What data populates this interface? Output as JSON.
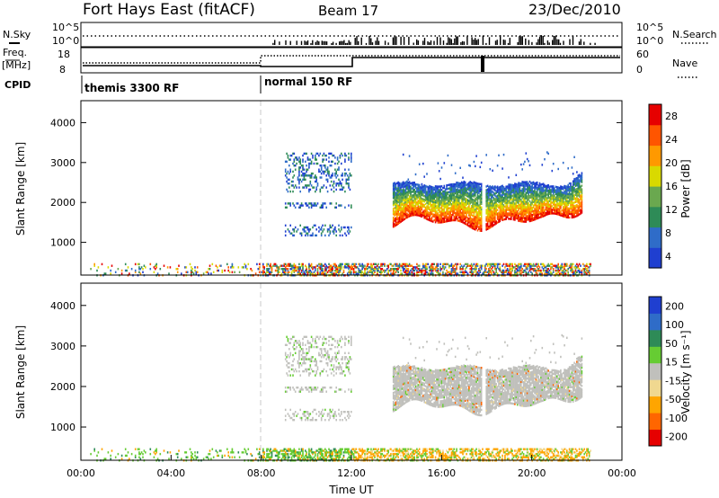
{
  "header": {
    "station": "Fort Hays East (fitACF)",
    "beam": "Beam 17",
    "date": "23/Dec/2010"
  },
  "summary": {
    "nsky_label": "N.Sky",
    "nsky_ticks": [
      "10^5",
      "10^0"
    ],
    "nsearch_label": "N.Search",
    "nsearch_ticks": [
      "10^5",
      "10^0"
    ],
    "freq_label": "Freq.",
    "freq_unit": "[MHz]",
    "freq_ticks": [
      "18",
      "8"
    ],
    "nave_label": "Nave",
    "nave_ticks": [
      "60",
      "0"
    ],
    "cpid_label": "CPID",
    "cpid_segments": [
      {
        "start_hr": 0,
        "label": "themis 3300 RF"
      },
      {
        "start_hr": 8,
        "label": "normal 150 RF"
      }
    ]
  },
  "colors": {
    "power": [
      "#1f3fd0",
      "#2f6cc8",
      "#2e8b57",
      "#6aa84f",
      "#d9d900",
      "#ff9900",
      "#ff5500",
      "#e60000"
    ],
    "velocity": [
      "#e60000",
      "#ff6600",
      "#ffa500",
      "#f0d890",
      "#c0c0bc",
      "#66cc33",
      "#2e8b57",
      "#2f6cc8",
      "#1f3fd0"
    ],
    "grey": "#c0c0bc",
    "dashed": "#c8c8c8"
  },
  "chart_data": [
    {
      "type": "heatmap",
      "title": "Power",
      "ylabel": "Slant Range [km]",
      "xlabel": "",
      "xlim": [
        0,
        24
      ],
      "ylim": [
        180,
        4550
      ],
      "yticks": [
        "4000",
        "3000",
        "2000",
        "1000"
      ],
      "colorbar": {
        "label": "Power [dB]",
        "ticks": [
          "28",
          "24",
          "20",
          "16",
          "12",
          "8",
          "4"
        ],
        "range": [
          0,
          30
        ]
      },
      "regions": [
        {
          "name": "evening echo band",
          "t_range": [
            13.8,
            22.2
          ],
          "range_km": [
            1400,
            2500
          ],
          "peak_power_db": 28
        },
        {
          "name": "mid-day patches",
          "t_range": [
            9.0,
            12.0
          ],
          "range_km": [
            1200,
            3300
          ],
          "peak_power_db": 8
        },
        {
          "name": "near-range ground scatter",
          "t_range": [
            0.5,
            22.5
          ],
          "range_km": [
            200,
            500
          ],
          "peak_power_db": 20
        }
      ]
    },
    {
      "type": "heatmap",
      "title": "Velocity",
      "ylabel": "Slant Range [km]",
      "xlabel": "Time UT",
      "xlim": [
        0,
        24
      ],
      "xticks": [
        "00:00",
        "04:00",
        "08:00",
        "12:00",
        "16:00",
        "20:00",
        "00:00"
      ],
      "ylim": [
        180,
        4550
      ],
      "yticks": [
        "4000",
        "3000",
        "2000",
        "1000"
      ],
      "colorbar": {
        "label": "Velocity [m s⁻¹]",
        "ticks": [
          "200",
          "100",
          "50",
          "15",
          "-15",
          "-50",
          "-100",
          "-200"
        ]
      },
      "regions": [
        {
          "name": "evening echo band",
          "t_range": [
            13.8,
            22.2
          ],
          "range_km": [
            1400,
            2500
          ],
          "velocity_ms": [
            -15,
            15
          ]
        },
        {
          "name": "near-range",
          "t_range": [
            8.0,
            22.0
          ],
          "range_km": [
            200,
            500
          ],
          "velocity_ms": [
            -50,
            50
          ]
        }
      ]
    }
  ]
}
